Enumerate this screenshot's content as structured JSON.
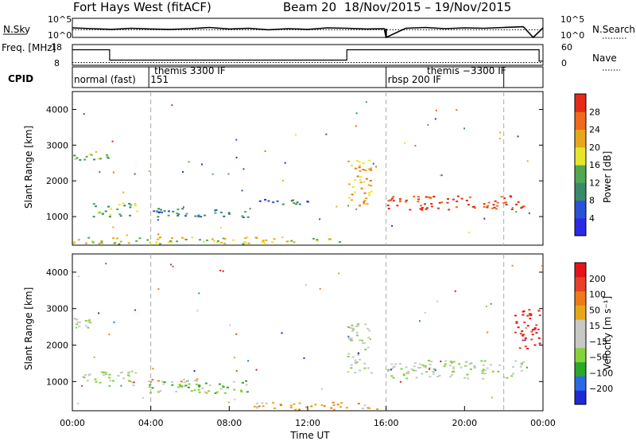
{
  "header": {
    "radar": "Fort Hays West (fitACF)",
    "beam": "Beam 20",
    "dates": "18/Nov/2015 – 19/Nov/2015"
  },
  "colors": {
    "power": [
      "#2a2ae6",
      "#2a52d6",
      "#3a8a6a",
      "#52a852",
      "#e6e62a",
      "#e6a81a",
      "#ef6a1a",
      "#e62a1a"
    ],
    "velocity": [
      "#1e2ad6",
      "#2a6ae6",
      "#2aa82a",
      "#82d23a",
      "#c8c8c4",
      "#c8c8c4",
      "#e6a81a",
      "#ef7a1a",
      "#e6422a",
      "#e6141a"
    ],
    "dashed_line": "#aaaaaa"
  },
  "chart_data": [
    {
      "type": "line",
      "panel": "counts",
      "ylabel": "N.Sky",
      "ylabel_right": "N.Search",
      "y_ticks_left": [
        "10^5",
        "10^0"
      ],
      "y_ticks_right": [
        "10^5",
        "10^0"
      ],
      "series": [
        {
          "name": "N.Sky",
          "x": [
            0.0,
            1.0,
            2.0,
            3.0,
            4.0,
            5.0,
            6.0,
            7.0,
            8.0,
            9.0,
            10.0,
            11.0,
            12.0,
            13.0,
            14.0,
            15.0,
            15.9,
            16.0,
            17.0,
            18.0,
            19.0,
            20.0,
            21.0,
            22.0,
            23.0,
            23.5,
            24.0
          ],
          "y": [
            2.5,
            2.3,
            2.1,
            2.4,
            2.2,
            2.1,
            2.3,
            2.6,
            2.2,
            2.4,
            2.0,
            2.3,
            2.1,
            2.5,
            2.4,
            2.2,
            2.3,
            0.0,
            2.4,
            2.6,
            2.3,
            2.5,
            2.4,
            2.6,
            2.8,
            0.0,
            2.5
          ]
        }
      ],
      "dotted": "N.Search"
    },
    {
      "type": "line",
      "panel": "frequency",
      "ylabel": "Freq. [MHz]",
      "ylabel_right": "Nave",
      "y_ticks_left": [
        "18",
        "8"
      ],
      "y_ticks_right": [
        "60",
        "0"
      ],
      "series": [
        {
          "name": "Freq.",
          "x": [
            0.0,
            1.9,
            1.9,
            14.0,
            14.0,
            16.0,
            16.0,
            23.8,
            23.8,
            24.0
          ],
          "y": [
            15.5,
            15.5,
            10.5,
            10.5,
            15.5,
            15.5,
            15.5,
            15.5,
            10.0,
            10.0
          ]
        },
        {
          "name": "Nave",
          "x": [
            0.0,
            24.0
          ],
          "y": [
            8,
            8
          ]
        }
      ]
    },
    {
      "type": "table",
      "panel": "cpid",
      "ylabel": "CPID",
      "segments": [
        {
          "start": 0.0,
          "label": "normal (fast)"
        },
        {
          "start": 3.9,
          "label": "151"
        },
        {
          "start": 4.1,
          "label": "themis 3300 IF"
        },
        {
          "start": 16.0,
          "label": "rbsp 200 IF"
        },
        {
          "start": 18.0,
          "label": "themis −3300 IF"
        }
      ],
      "boundaries": [
        3.9,
        16.0,
        22.0
      ]
    },
    {
      "type": "heatmap",
      "panel": "power",
      "ylabel": "Slant Range [km]",
      "y_ticks": [
        "1000",
        "2000",
        "3000",
        "4000"
      ],
      "ylim": [
        200,
        4500
      ],
      "colorbar_label": "Power [dB]",
      "colorbar_ticks": [
        "4",
        "8",
        "12",
        "16",
        "20",
        "24",
        "28"
      ],
      "features": [
        {
          "x0": 0.0,
          "x1": 1.8,
          "y0": 2600,
          "y1": 2800,
          "level": 3
        },
        {
          "x0": 1.0,
          "x1": 3.3,
          "y0": 1000,
          "y1": 1400,
          "level": 3
        },
        {
          "x0": 4.0,
          "x1": 9.0,
          "y0": 1000,
          "y1": 1250,
          "level": 2
        },
        {
          "x0": 9.5,
          "x1": 12.0,
          "y0": 1350,
          "y1": 1500,
          "level": 1
        },
        {
          "x0": 14.0,
          "x1": 15.2,
          "y0": 1300,
          "y1": 2600,
          "level": 5
        },
        {
          "x0": 16.0,
          "x1": 23.0,
          "y0": 1200,
          "y1": 1600,
          "level": 7
        },
        {
          "x0": 0.0,
          "x1": 14.0,
          "y0": 250,
          "y1": 450,
          "level": 4
        }
      ]
    },
    {
      "type": "heatmap",
      "panel": "velocity",
      "ylabel": "Slant Range [km]",
      "y_ticks": [
        "1000",
        "2000",
        "3000",
        "4000"
      ],
      "ylim": [
        200,
        4500
      ],
      "colorbar_label": "Velocity [m s⁻¹]",
      "colorbar_ticks": [
        "200",
        "100",
        "50",
        "15",
        "−15",
        "−50",
        "−100",
        "−200"
      ],
      "features": [
        {
          "x0": 0.0,
          "x1": 1.0,
          "y0": 2500,
          "y1": 2750,
          "level": 4
        },
        {
          "x0": 0.5,
          "x1": 3.5,
          "y0": 900,
          "y1": 1300,
          "level": 4
        },
        {
          "x0": 3.8,
          "x1": 9.0,
          "y0": 700,
          "y1": 1050,
          "level": 3
        },
        {
          "x0": 2.5,
          "x1": 6.5,
          "y0": 1000,
          "y1": 1100,
          "level": 6
        },
        {
          "x0": 14.0,
          "x1": 15.2,
          "y0": 1200,
          "y1": 2600,
          "level": 4
        },
        {
          "x0": 16.0,
          "x1": 23.0,
          "y0": 1100,
          "y1": 1600,
          "level": 4
        },
        {
          "x0": 22.5,
          "x1": 23.8,
          "y0": 1900,
          "y1": 3000,
          "level": 9
        },
        {
          "x0": 9.0,
          "x1": 15.5,
          "y0": 250,
          "y1": 450,
          "level": 6
        }
      ]
    }
  ],
  "x_axis": {
    "label": "Time UT",
    "ticks": [
      "00:00",
      "04:00",
      "08:00",
      "12:00",
      "16:00",
      "20:00",
      "00:00"
    ],
    "range": [
      0,
      24
    ]
  }
}
